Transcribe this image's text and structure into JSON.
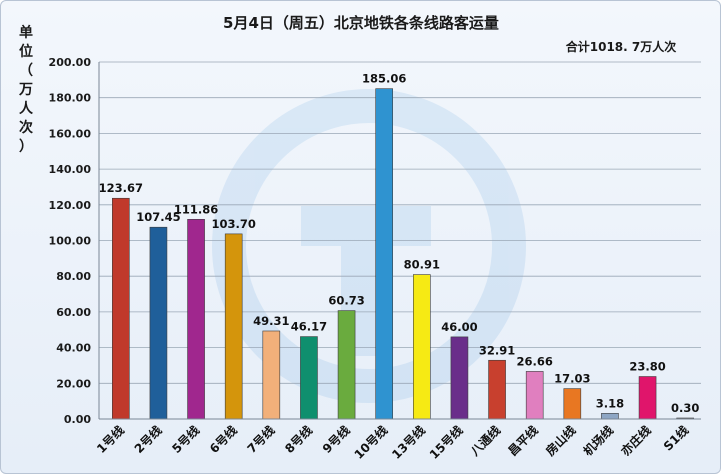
{
  "chart_data": {
    "type": "bar",
    "title": "5月4日（周五）北京地铁各条线路客运量",
    "total_label": "合计1018. 7万人次",
    "ylabel": "单位（万人次）",
    "xlabel": "",
    "ylim": [
      0,
      200
    ],
    "yticks": [
      "0.00",
      "20.00",
      "40.00",
      "60.00",
      "80.00",
      "100.00",
      "120.00",
      "140.00",
      "160.00",
      "180.00",
      "200.00"
    ],
    "grid": true,
    "categories": [
      "1号线",
      "2号线",
      "5号线",
      "6号线",
      "7号线",
      "8号线",
      "9号线",
      "10号线",
      "13号线",
      "15号线",
      "八通线",
      "昌平线",
      "房山线",
      "机场线",
      "亦庄线",
      "S1线"
    ],
    "values": [
      123.67,
      107.45,
      111.86,
      103.7,
      49.31,
      46.17,
      60.73,
      185.06,
      80.91,
      46.0,
      32.91,
      26.66,
      17.03,
      3.18,
      23.8,
      0.3
    ],
    "value_labels": [
      "123.67",
      "107.45",
      "111.86",
      "103.70",
      "49.31",
      "46.17",
      "60.73",
      "185.06",
      "80.91",
      "46.00",
      "32.91",
      "26.66",
      "17.03",
      "3.18",
      "23.80",
      "0.30"
    ],
    "colors": [
      "#c0392b",
      "#1f5f9a",
      "#a0278e",
      "#d4950c",
      "#f2b07a",
      "#0f8f6e",
      "#6aab3e",
      "#2f93d0",
      "#f6ea14",
      "#6a2e8a",
      "#c8402e",
      "#e07fbf",
      "#e87722",
      "#8ea6c4",
      "#e0156b",
      "#8e8e8e"
    ]
  }
}
